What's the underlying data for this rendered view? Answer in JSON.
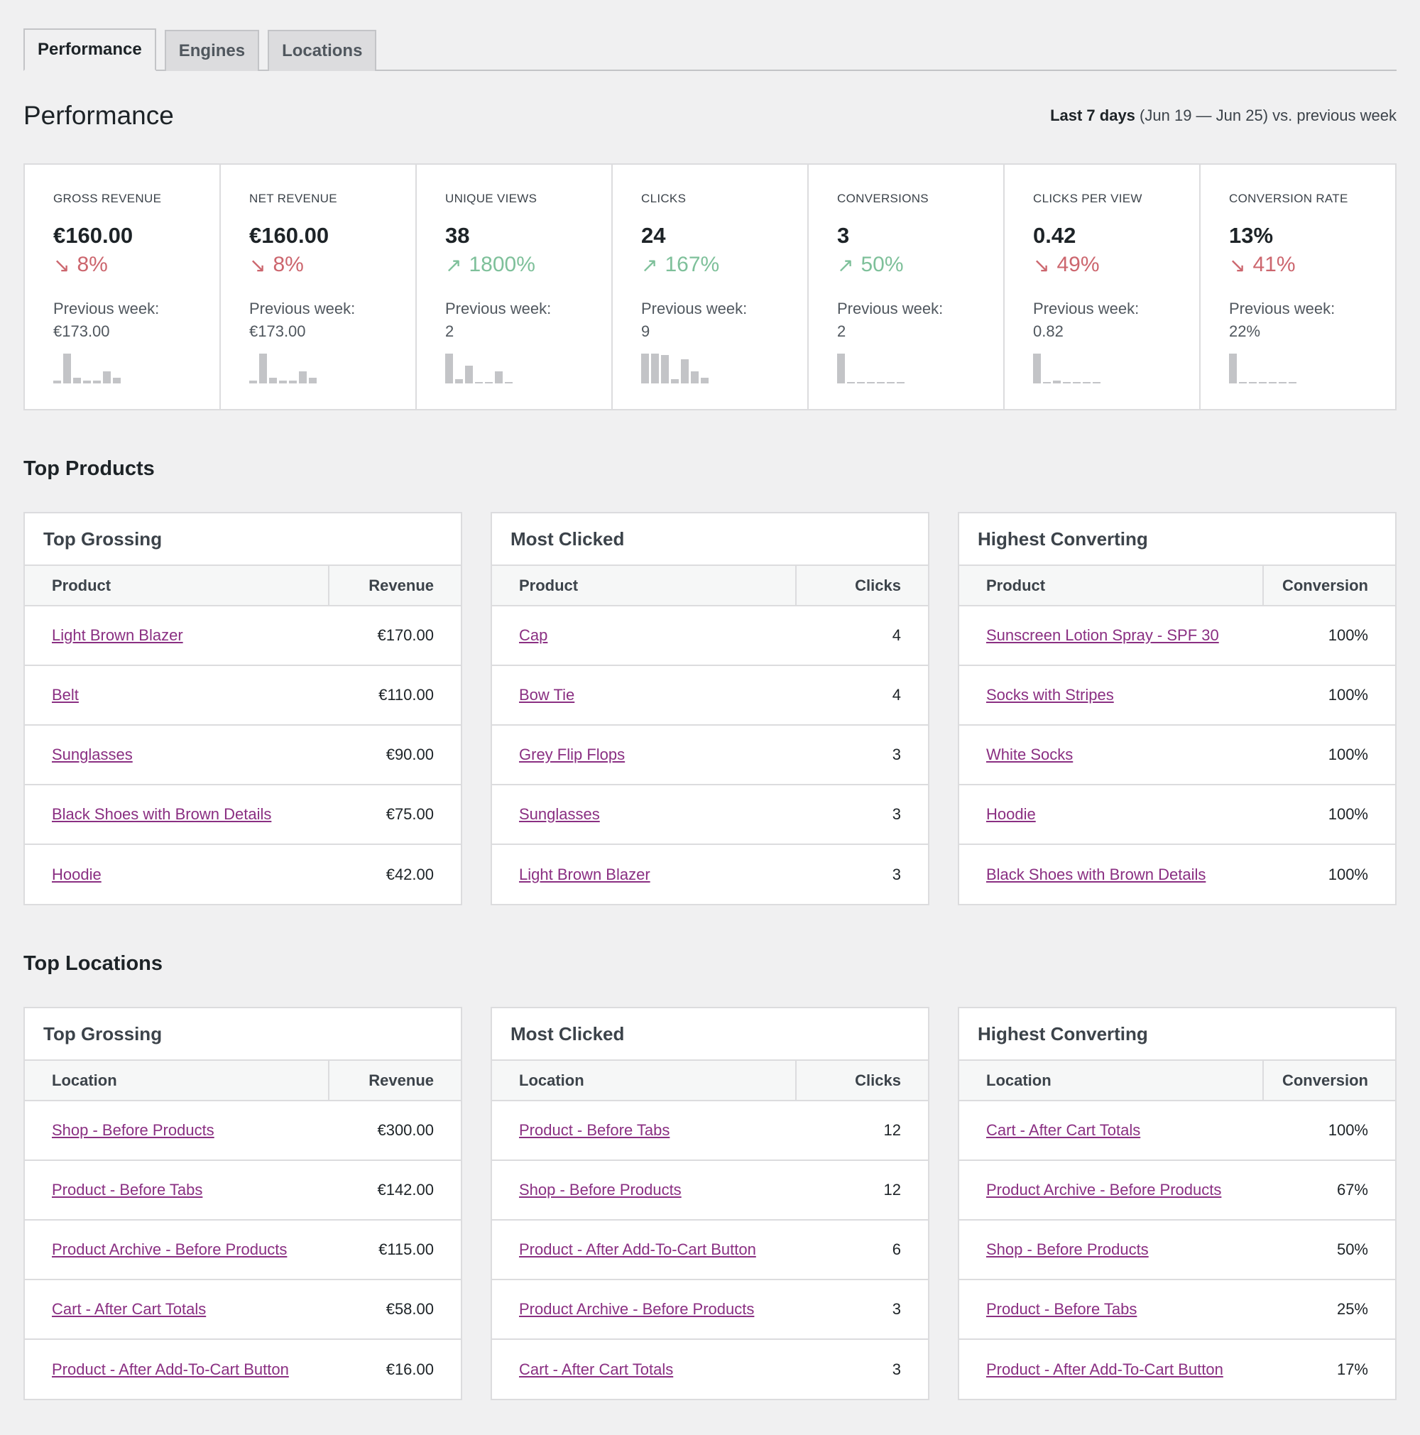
{
  "tabs": [
    {
      "label": "Performance",
      "active": true
    },
    {
      "label": "Engines",
      "active": false
    },
    {
      "label": "Locations",
      "active": false
    }
  ],
  "header": {
    "title": "Performance",
    "range_bold": "Last 7 days",
    "range_rest": "(Jun 19 — Jun 25) vs. previous week"
  },
  "colors": {
    "down": "#cc666e",
    "up": "#7ec09a",
    "link": "#8a2f82"
  },
  "metrics": [
    {
      "label": "GROSS REVENUE",
      "value": "€160.00",
      "delta": "8%",
      "direction": "down",
      "prev_label": "Previous week:",
      "prev_value": "€173.00",
      "spark": [
        0.1,
        1,
        0.2,
        0.1,
        0.1,
        0.4,
        0.2
      ]
    },
    {
      "label": "NET REVENUE",
      "value": "€160.00",
      "delta": "8%",
      "direction": "down",
      "prev_label": "Previous week:",
      "prev_value": "€173.00",
      "spark": [
        0.1,
        1,
        0.2,
        0.1,
        0.1,
        0.4,
        0.2
      ]
    },
    {
      "label": "UNIQUE VIEWS",
      "value": "38",
      "delta": "1800%",
      "direction": "up",
      "prev_label": "Previous week:",
      "prev_value": "2",
      "spark": [
        1,
        0.15,
        0.6,
        0.05,
        0.05,
        0.4,
        0.05
      ]
    },
    {
      "label": "CLICKS",
      "value": "24",
      "delta": "167%",
      "direction": "up",
      "prev_label": "Previous week:",
      "prev_value": "9",
      "spark": [
        1,
        1,
        0.95,
        0.15,
        0.8,
        0.4,
        0.2
      ]
    },
    {
      "label": "CONVERSIONS",
      "value": "3",
      "delta": "50%",
      "direction": "up",
      "prev_label": "Previous week:",
      "prev_value": "2",
      "spark": [
        1,
        0.05,
        0.05,
        0.05,
        0.05,
        0.05,
        0.05
      ]
    },
    {
      "label": "CLICKS PER VIEW",
      "value": "0.42",
      "delta": "49%",
      "direction": "down",
      "prev_label": "Previous week:",
      "prev_value": "0.82",
      "spark": [
        1,
        0.05,
        0.1,
        0.05,
        0.05,
        0.05,
        0.05
      ]
    },
    {
      "label": "CONVERSION RATE",
      "value": "13%",
      "delta": "41%",
      "direction": "down",
      "prev_label": "Previous week:",
      "prev_value": "22%",
      "spark": [
        1,
        0.05,
        0.05,
        0.05,
        0.05,
        0.05,
        0.05
      ]
    }
  ],
  "products": {
    "title": "Top Products",
    "grossing": {
      "title": "Top Grossing",
      "col1": "Product",
      "col2": "Revenue",
      "rows": [
        {
          "name": "Light Brown Blazer",
          "value": "€170.00"
        },
        {
          "name": "Belt",
          "value": "€110.00"
        },
        {
          "name": "Sunglasses",
          "value": "€90.00"
        },
        {
          "name": "Black Shoes with Brown Details",
          "value": "€75.00"
        },
        {
          "name": "Hoodie",
          "value": "€42.00"
        }
      ]
    },
    "clicked": {
      "title": "Most Clicked",
      "col1": "Product",
      "col2": "Clicks",
      "rows": [
        {
          "name": "Cap",
          "value": "4"
        },
        {
          "name": "Bow Tie",
          "value": "4"
        },
        {
          "name": "Grey Flip Flops",
          "value": "3"
        },
        {
          "name": "Sunglasses",
          "value": "3"
        },
        {
          "name": "Light Brown Blazer",
          "value": "3"
        }
      ]
    },
    "converting": {
      "title": "Highest Converting",
      "col1": "Product",
      "col2": "Conversion",
      "rows": [
        {
          "name": "Sunscreen Lotion Spray - SPF 30",
          "value": "100%"
        },
        {
          "name": "Socks with Stripes",
          "value": "100%"
        },
        {
          "name": "White Socks",
          "value": "100%"
        },
        {
          "name": "Hoodie",
          "value": "100%"
        },
        {
          "name": "Black Shoes with Brown Details",
          "value": "100%"
        }
      ]
    }
  },
  "locations": {
    "title": "Top Locations",
    "grossing": {
      "title": "Top Grossing",
      "col1": "Location",
      "col2": "Revenue",
      "rows": [
        {
          "name": "Shop - Before Products",
          "value": "€300.00"
        },
        {
          "name": "Product - Before Tabs",
          "value": "€142.00"
        },
        {
          "name": "Product Archive - Before Products",
          "value": "€115.00"
        },
        {
          "name": "Cart - After Cart Totals",
          "value": "€58.00"
        },
        {
          "name": "Product - After Add-To-Cart Button",
          "value": "€16.00"
        }
      ]
    },
    "clicked": {
      "title": "Most Clicked",
      "col1": "Location",
      "col2": "Clicks",
      "rows": [
        {
          "name": "Product - Before Tabs",
          "value": "12"
        },
        {
          "name": "Shop - Before Products",
          "value": "12"
        },
        {
          "name": "Product - After Add-To-Cart Button",
          "value": "6"
        },
        {
          "name": "Product Archive - Before Products",
          "value": "3"
        },
        {
          "name": "Cart - After Cart Totals",
          "value": "3"
        }
      ]
    },
    "converting": {
      "title": "Highest Converting",
      "col1": "Location",
      "col2": "Conversion",
      "rows": [
        {
          "name": "Cart - After Cart Totals",
          "value": "100%"
        },
        {
          "name": "Product Archive - Before Products",
          "value": "67%"
        },
        {
          "name": "Shop - Before Products",
          "value": "50%"
        },
        {
          "name": "Product - Before Tabs",
          "value": "25%"
        },
        {
          "name": "Product - After Add-To-Cart Button",
          "value": "17%"
        }
      ]
    }
  }
}
